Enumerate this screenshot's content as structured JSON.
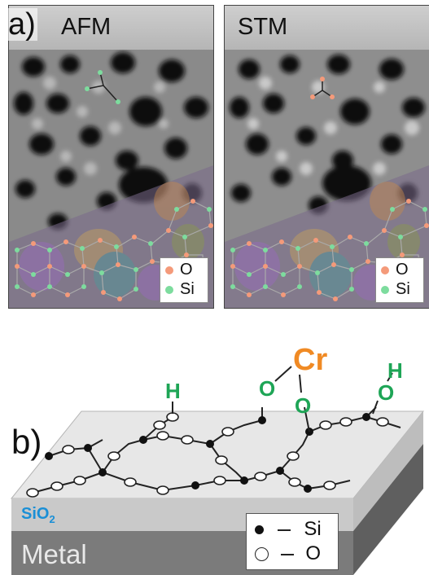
{
  "panel_a": {
    "label": "a)",
    "afm": {
      "title": "AFM"
    },
    "stm": {
      "title": "STM"
    },
    "legend": {
      "o": "O",
      "si": "Si"
    }
  },
  "panel_b": {
    "label": "b)",
    "sio2": "SiO",
    "sio2_sub": "2",
    "metal": "Metal",
    "cr": "Cr",
    "o_left": "O",
    "o_right": "O",
    "o_far": "O",
    "h_left": "H",
    "h_right": "H",
    "legend": {
      "si": "Si",
      "o": "O"
    }
  },
  "colors": {
    "oxygen": "#f49a7a",
    "silicon": "#7ddc9e",
    "cr": "#f08a24",
    "atom_label": "#1ea556",
    "sio2_label": "#1a8fd6"
  }
}
